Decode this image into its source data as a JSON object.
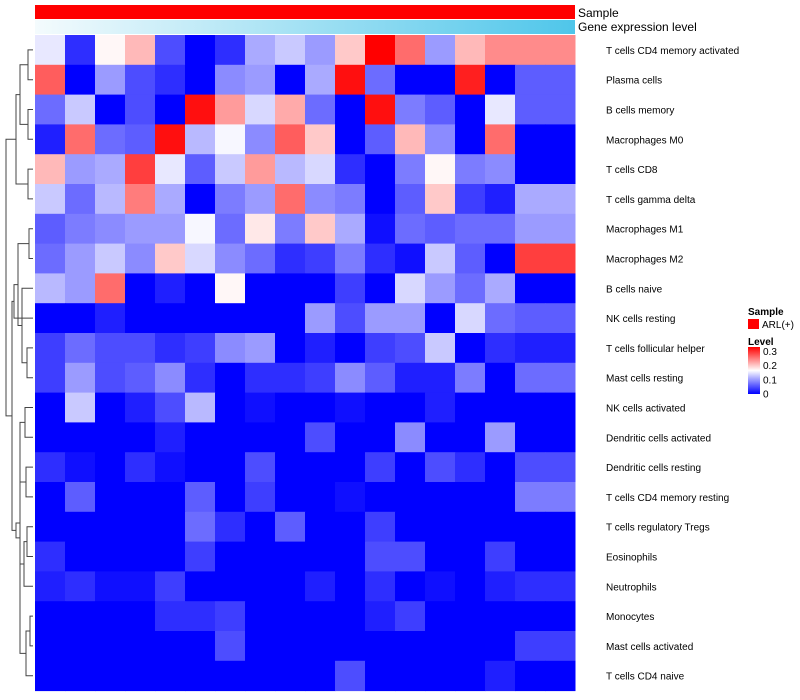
{
  "chart_data": {
    "type": "heatmap",
    "title": "",
    "annotation_tracks": [
      {
        "name": "Sample",
        "label": "Sample",
        "color": "#ff0000"
      },
      {
        "name": "Gene expression level",
        "label": "Gene expression level",
        "gradient": [
          "#f4fbfd",
          "#4fc6ea"
        ]
      }
    ],
    "legend": {
      "placement": "right",
      "sample": {
        "title": "Sample",
        "entry": "ARL(+)",
        "color": "#ff0000"
      },
      "level": {
        "title": "Level",
        "ticks": [
          "0.3",
          "0.2",
          "0.1",
          "0"
        ],
        "tick_values": [
          0.3,
          0.2,
          0.1,
          0
        ],
        "range": [
          0,
          0.33
        ],
        "colors": [
          "#0000ff",
          "#ffffff",
          "#ff0000"
        ]
      }
    },
    "rows": [
      "T cells CD4 memory activated",
      "Plasma cells",
      "B cells memory",
      "Macrophages M0",
      "T cells CD8",
      "T cells gamma delta",
      "Macrophages M1",
      "Macrophages M2",
      "B cells naive",
      "NK cells resting",
      "T cells follicular helper",
      "Mast cells resting",
      "NK cells activated",
      "Dendritic cells activated",
      "Dendritic cells resting",
      "T cells CD4 memory resting",
      "T cells regulatory  Tregs",
      "Eosinophils",
      "Neutrophils",
      "Monocytes",
      "Mast cells activated",
      "T cells CD4 naive"
    ],
    "n_columns": 18,
    "values": [
      [
        0.15,
        0.03,
        0.17,
        0.21,
        0.05,
        0.0,
        0.03,
        0.11,
        0.13,
        0.1,
        0.2,
        0.33,
        0.26,
        0.1,
        0.21,
        0.24,
        0.24,
        0.24
      ],
      [
        0.27,
        0.0,
        0.1,
        0.05,
        0.03,
        0.0,
        0.09,
        0.1,
        0.0,
        0.11,
        0.32,
        0.07,
        0.0,
        0.0,
        0.31,
        0.0,
        0.06,
        0.06
      ],
      [
        0.07,
        0.13,
        0.0,
        0.05,
        0.0,
        0.32,
        0.23,
        0.14,
        0.22,
        0.07,
        0.0,
        0.32,
        0.08,
        0.06,
        0.0,
        0.15,
        0.06,
        0.06
      ],
      [
        0.02,
        0.26,
        0.07,
        0.06,
        0.32,
        0.12,
        0.16,
        0.09,
        0.27,
        0.2,
        0.0,
        0.06,
        0.21,
        0.09,
        0.0,
        0.26,
        0.0,
        0.0
      ],
      [
        0.21,
        0.1,
        0.11,
        0.29,
        0.15,
        0.06,
        0.13,
        0.23,
        0.12,
        0.14,
        0.03,
        0.0,
        0.08,
        0.17,
        0.08,
        0.09,
        0.0,
        0.0
      ],
      [
        0.13,
        0.07,
        0.12,
        0.25,
        0.11,
        0.0,
        0.08,
        0.1,
        0.26,
        0.09,
        0.08,
        0.0,
        0.06,
        0.2,
        0.04,
        0.02,
        0.11,
        0.11
      ],
      [
        0.06,
        0.08,
        0.09,
        0.1,
        0.1,
        0.16,
        0.07,
        0.18,
        0.08,
        0.2,
        0.11,
        0.01,
        0.07,
        0.06,
        0.07,
        0.07,
        0.1,
        0.1
      ],
      [
        0.07,
        0.1,
        0.13,
        0.09,
        0.2,
        0.14,
        0.09,
        0.07,
        0.03,
        0.04,
        0.08,
        0.03,
        0.01,
        0.13,
        0.06,
        0.0,
        0.29,
        0.29
      ],
      [
        0.12,
        0.1,
        0.26,
        0.0,
        0.02,
        0.0,
        0.17,
        0.0,
        0.0,
        0.0,
        0.04,
        0.0,
        0.14,
        0.1,
        0.07,
        0.11,
        0.0,
        0.0
      ],
      [
        0.0,
        0.0,
        0.02,
        0.0,
        0.0,
        0.0,
        0.0,
        0.0,
        0.0,
        0.1,
        0.05,
        0.1,
        0.1,
        0.0,
        0.14,
        0.07,
        0.06,
        0.06
      ],
      [
        0.04,
        0.07,
        0.05,
        0.05,
        0.03,
        0.04,
        0.09,
        0.1,
        0.0,
        0.02,
        0.0,
        0.04,
        0.05,
        0.13,
        0.0,
        0.03,
        0.02,
        0.02
      ],
      [
        0.04,
        0.1,
        0.05,
        0.06,
        0.09,
        0.03,
        0.0,
        0.03,
        0.03,
        0.04,
        0.09,
        0.06,
        0.02,
        0.02,
        0.08,
        0.0,
        0.07,
        0.07
      ],
      [
        0.0,
        0.13,
        0.0,
        0.02,
        0.05,
        0.12,
        0.0,
        0.01,
        0.0,
        0.0,
        0.01,
        0.0,
        0.0,
        0.02,
        0.0,
        0.0,
        0.0,
        0.0
      ],
      [
        0.0,
        0.0,
        0.0,
        0.0,
        0.02,
        0.0,
        0.0,
        0.0,
        0.0,
        0.05,
        0.0,
        0.0,
        0.09,
        0.0,
        0.0,
        0.1,
        0.0,
        0.0
      ],
      [
        0.03,
        0.01,
        0.0,
        0.03,
        0.01,
        0.0,
        0.0,
        0.05,
        0.0,
        0.0,
        0.0,
        0.04,
        0.0,
        0.05,
        0.03,
        0.0,
        0.05,
        0.05
      ],
      [
        0.0,
        0.06,
        0.0,
        0.0,
        0.0,
        0.06,
        0.0,
        0.04,
        0.0,
        0.0,
        0.01,
        0.0,
        0.0,
        0.0,
        0.0,
        0.0,
        0.08,
        0.08
      ],
      [
        0.0,
        0.0,
        0.0,
        0.0,
        0.0,
        0.07,
        0.03,
        0.0,
        0.06,
        0.0,
        0.0,
        0.04,
        0.0,
        0.0,
        0.0,
        0.0,
        0.0,
        0.0
      ],
      [
        0.03,
        0.0,
        0.0,
        0.0,
        0.0,
        0.04,
        0.0,
        0.0,
        0.0,
        0.0,
        0.0,
        0.05,
        0.05,
        0.0,
        0.0,
        0.04,
        0.0,
        0.0
      ],
      [
        0.02,
        0.03,
        0.01,
        0.01,
        0.04,
        0.0,
        0.0,
        0.0,
        0.0,
        0.02,
        0.0,
        0.03,
        0.0,
        0.01,
        0.0,
        0.02,
        0.03,
        0.03
      ],
      [
        0.0,
        0.0,
        0.0,
        0.0,
        0.03,
        0.03,
        0.04,
        0.0,
        0.0,
        0.0,
        0.0,
        0.02,
        0.04,
        0.0,
        0.0,
        0.0,
        0.0,
        0.0
      ],
      [
        0.0,
        0.0,
        0.0,
        0.0,
        0.0,
        0.0,
        0.05,
        0.0,
        0.0,
        0.0,
        0.0,
        0.0,
        0.0,
        0.0,
        0.0,
        0.0,
        0.04,
        0.04
      ],
      [
        0.0,
        0.0,
        0.0,
        0.0,
        0.0,
        0.0,
        0.0,
        0.0,
        0.0,
        0.0,
        0.05,
        0.0,
        0.0,
        0.0,
        0.0,
        0.02,
        0.0,
        0.0
      ]
    ],
    "row_dendrogram": true,
    "xlabel": "",
    "ylabel": ""
  }
}
